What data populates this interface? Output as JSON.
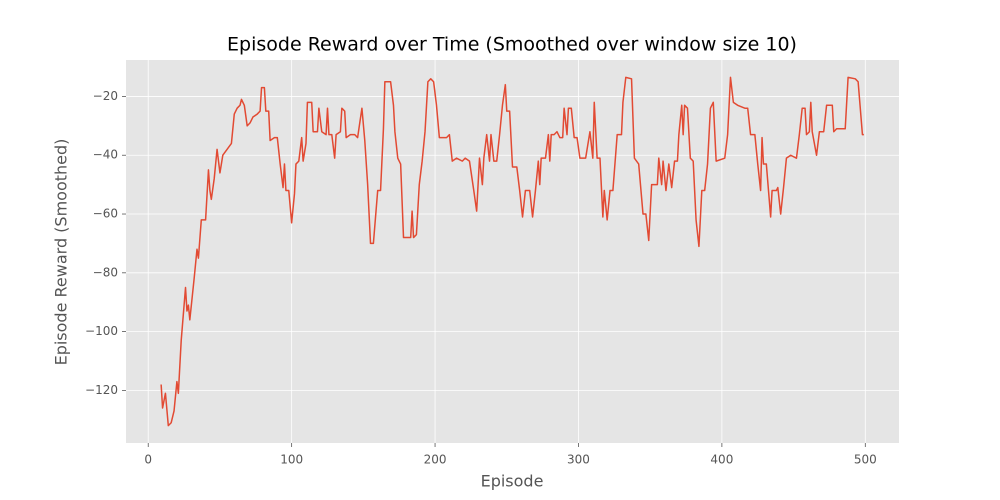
{
  "chart_data": {
    "type": "line",
    "title": "Episode Reward over Time (Smoothed over window size 10)",
    "x_label": "Episode",
    "y_label": "Episode Reward (Smoothed)",
    "color": "#E24A33",
    "grid": true,
    "xlim": [
      -15.5,
      523.5
    ],
    "ylim": [
      -137.9,
      -7.6
    ],
    "xticks": [
      0,
      100,
      200,
      300,
      400,
      500
    ],
    "yticks": [
      {
        "value": -120,
        "label": "−120"
      },
      {
        "value": -100,
        "label": "−100"
      },
      {
        "value": -80,
        "label": "−80"
      },
      {
        "value": -60,
        "label": "−60"
      },
      {
        "value": -40,
        "label": "−40"
      },
      {
        "value": -20,
        "label": "−20"
      }
    ],
    "x": [
      9,
      10,
      12,
      14,
      16,
      18,
      20,
      21,
      23,
      26,
      27,
      28,
      29,
      32,
      34,
      35,
      37,
      40,
      42,
      43,
      44,
      46,
      48,
      50,
      52,
      55,
      58,
      60,
      62,
      64,
      65,
      67,
      69,
      71,
      73,
      76,
      78,
      79,
      81,
      82,
      84,
      85,
      88,
      90,
      92,
      94,
      95,
      96,
      98,
      100,
      102,
      103,
      105,
      107,
      108,
      110,
      111,
      114,
      115,
      118,
      119,
      121,
      124,
      125,
      126,
      128,
      130,
      131,
      134,
      135,
      137,
      138,
      141,
      144,
      146,
      149,
      151,
      153,
      155,
      157,
      160,
      162,
      164,
      165,
      169,
      171,
      172,
      174,
      176,
      178,
      183,
      184,
      185,
      187,
      189,
      191,
      193,
      195,
      197,
      199,
      201,
      203,
      208,
      210,
      212,
      215,
      219,
      221,
      224,
      227,
      229,
      231,
      233,
      234,
      236,
      238,
      239,
      241,
      243,
      245,
      247,
      249,
      250,
      252,
      254,
      257,
      259,
      261,
      263,
      266,
      268,
      270,
      272,
      273,
      274,
      277,
      279,
      280,
      281,
      283,
      285,
      287,
      289,
      290,
      292,
      293,
      295,
      297,
      299,
      301,
      305,
      308,
      310,
      311,
      313,
      315,
      317,
      318,
      320,
      322,
      324,
      327,
      330,
      331,
      333,
      337,
      339,
      342,
      345,
      347,
      349,
      351,
      353,
      355,
      356,
      358,
      359,
      361,
      363,
      365,
      367,
      369,
      370,
      372,
      373,
      374,
      376,
      378,
      380,
      382,
      384,
      386,
      388,
      390,
      392,
      394,
      396,
      402,
      404,
      406,
      408,
      411,
      416,
      418,
      420,
      423,
      425,
      427,
      428,
      429,
      431,
      434,
      435,
      438,
      439,
      441,
      443,
      445,
      448,
      452,
      454,
      456,
      458,
      459,
      461,
      462,
      463,
      466,
      468,
      471,
      473,
      477,
      478,
      480,
      484,
      486,
      488,
      493,
      495,
      498,
      499
    ],
    "values": [
      -118,
      -126,
      -121,
      -132,
      -131,
      -127,
      -117,
      -121,
      -103,
      -85,
      -93,
      -91,
      -96,
      -82,
      -72,
      -75,
      -62,
      -62,
      -45,
      -52,
      -55,
      -48,
      -38,
      -46,
      -40,
      -38,
      -36,
      -26,
      -24,
      -23,
      -21,
      -23,
      -30,
      -29,
      -27,
      -26,
      -25,
      -17,
      -17,
      -25,
      -25,
      -35,
      -34,
      -34,
      -43,
      -51,
      -43,
      -52,
      -52,
      -63,
      -53,
      -43,
      -42,
      -34,
      -42,
      -36,
      -22,
      -22,
      -32,
      -32,
      -24,
      -32,
      -33,
      -24,
      -33,
      -33,
      -41,
      -33,
      -32,
      -24,
      -25,
      -34,
      -33,
      -33,
      -34,
      -24,
      -35,
      -50,
      -70,
      -70,
      -52,
      -52,
      -31,
      -15,
      -15,
      -23,
      -32,
      -41,
      -43,
      -68,
      -68,
      -59,
      -68,
      -67,
      -50,
      -42,
      -32,
      -15,
      -14,
      -15,
      -23,
      -34,
      -34,
      -33,
      -42,
      -41,
      -42,
      -41,
      -42,
      -52,
      -59,
      -41,
      -50,
      -41,
      -33,
      -42,
      -33,
      -42,
      -42,
      -33,
      -23,
      -16,
      -25,
      -25,
      -44,
      -44,
      -52,
      -61,
      -52,
      -52,
      -61,
      -52,
      -42,
      -50,
      -41,
      -41,
      -33,
      -42,
      -33,
      -33,
      -32,
      -34,
      -34,
      -24,
      -33,
      -24,
      -24,
      -34,
      -34,
      -41,
      -41,
      -32,
      -41,
      -22,
      -41,
      -41,
      -61,
      -52,
      -62,
      -52,
      -52,
      -33,
      -33,
      -22,
      -13.5,
      -14,
      -41,
      -43,
      -60,
      -60,
      -69,
      -50,
      -50,
      -50,
      -41,
      -50,
      -42,
      -52,
      -43,
      -51,
      -42,
      -42,
      -33,
      -23,
      -33,
      -23,
      -24,
      -41,
      -42,
      -62,
      -71,
      -52,
      -52,
      -43,
      -24,
      -22,
      -42,
      -41,
      -33,
      -13.5,
      -22,
      -23,
      -24,
      -24,
      -33,
      -33,
      -43,
      -52,
      -34,
      -43,
      -43,
      -61,
      -52,
      -52,
      -51,
      -60,
      -51,
      -41,
      -40,
      -41,
      -33,
      -24,
      -24,
      -33,
      -32,
      -22,
      -32,
      -40,
      -32,
      -32,
      -23,
      -23,
      -32,
      -31,
      -31,
      -31,
      -13.5,
      -14,
      -15,
      -33,
      -33
    ]
  }
}
